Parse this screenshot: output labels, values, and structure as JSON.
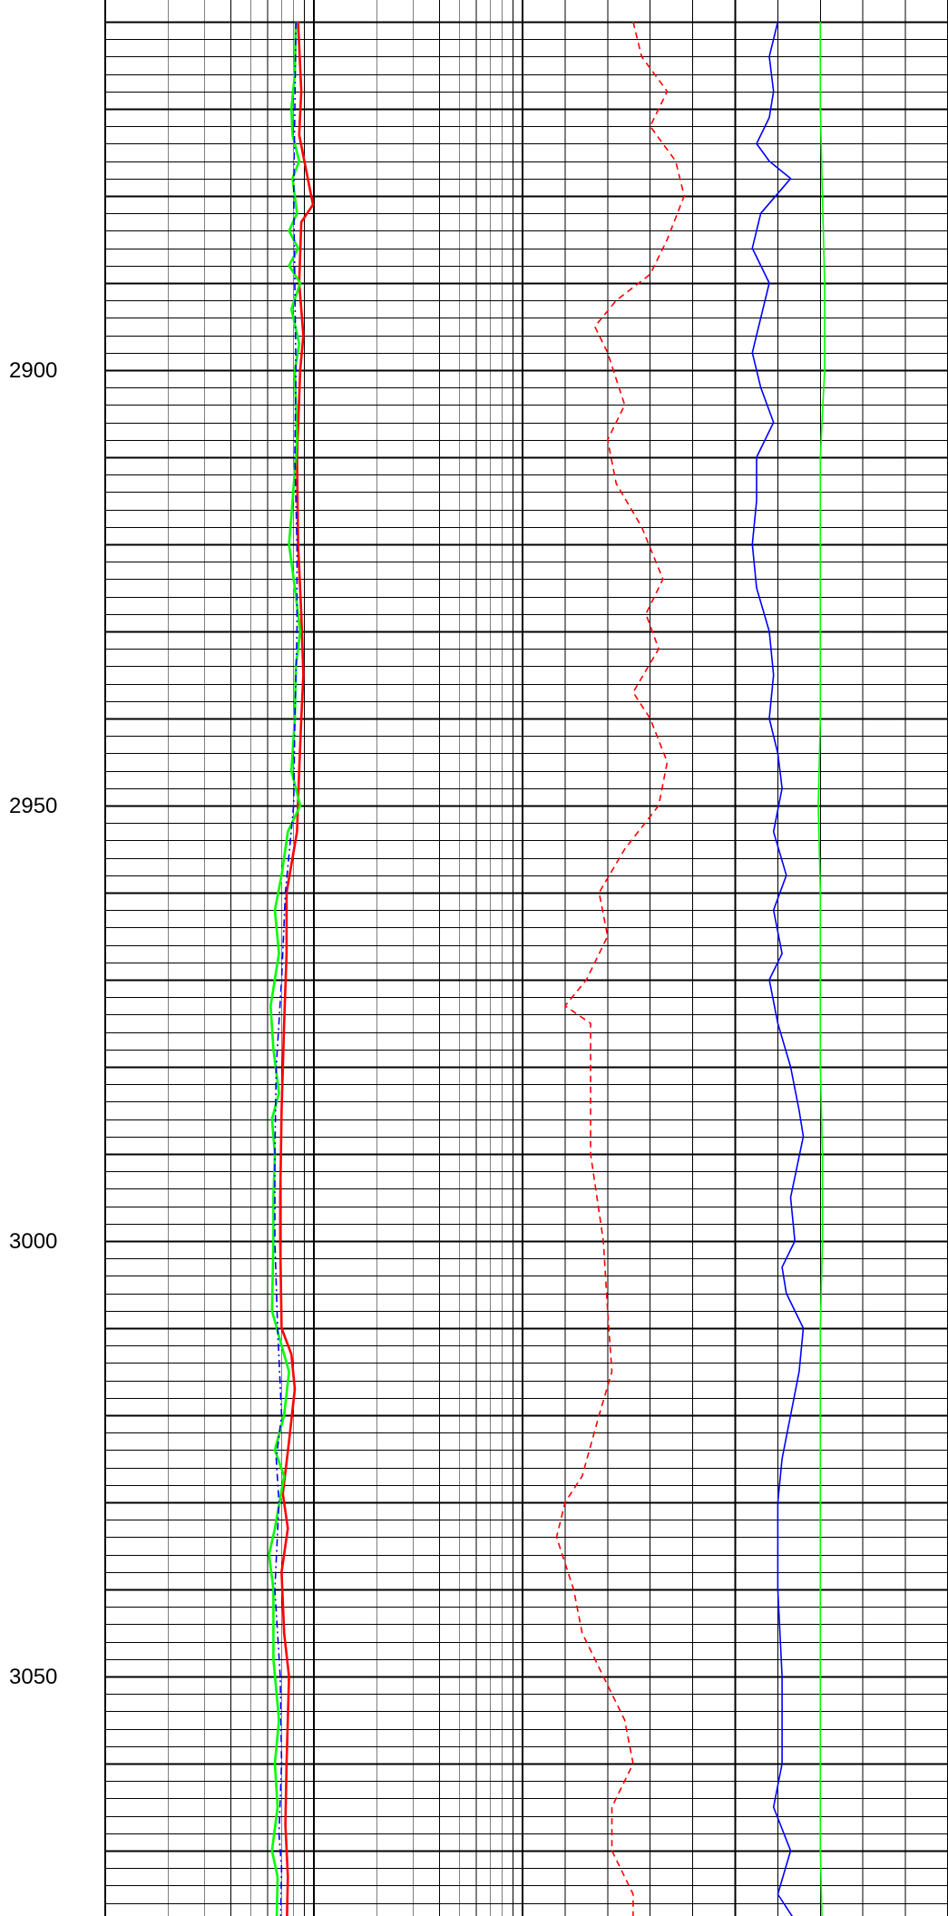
{
  "chart_data": {
    "type": "line",
    "title": "",
    "orientation": "vertical-depth",
    "depth_axis": {
      "range": [
        2860,
        3080
      ],
      "tick_labels": [
        "2900",
        "2950",
        "3000",
        "3050"
      ],
      "major_step": 10,
      "labeled_step": 50,
      "grid": true
    },
    "tracks": [
      {
        "name": "",
        "scale": "log",
        "decades": 2,
        "x_range": [
          0.2,
          20
        ],
        "grid": true,
        "series": [
          {
            "name": "",
            "color": "#ff0000",
            "style": "solid",
            "points": [
              [
                2860,
                1.68
              ],
              [
                2868,
                1.74
              ],
              [
                2873,
                1.7
              ],
              [
                2881,
                1.98
              ],
              [
                2883,
                1.74
              ],
              [
                2890,
                1.7
              ],
              [
                2896,
                1.78
              ],
              [
                2900,
                1.72
              ],
              [
                2910,
                1.66
              ],
              [
                2920,
                1.68
              ],
              [
                2928,
                1.74
              ],
              [
                2935,
                1.78
              ],
              [
                2940,
                1.74
              ],
              [
                2946,
                1.7
              ],
              [
                2953,
                1.66
              ],
              [
                2960,
                1.48
              ],
              [
                2967,
                1.48
              ],
              [
                2975,
                1.44
              ],
              [
                2985,
                1.4
              ],
              [
                2995,
                1.38
              ],
              [
                3000,
                1.38
              ],
              [
                3010,
                1.4
              ],
              [
                3013,
                1.56
              ],
              [
                3017,
                1.62
              ],
              [
                3023,
                1.52
              ],
              [
                3029,
                1.42
              ],
              [
                3033,
                1.5
              ],
              [
                3038,
                1.4
              ],
              [
                3045,
                1.44
              ],
              [
                3050,
                1.52
              ],
              [
                3060,
                1.48
              ],
              [
                3067,
                1.46
              ],
              [
                3073,
                1.5
              ],
              [
                3080,
                1.48
              ]
            ]
          },
          {
            "name": "",
            "color": "#00ff00",
            "style": "solid",
            "points": [
              [
                2860,
                1.64
              ],
              [
                2866,
                1.62
              ],
              [
                2870,
                1.56
              ],
              [
                2873,
                1.58
              ],
              [
                2876,
                1.7
              ],
              [
                2878,
                1.58
              ],
              [
                2882,
                1.66
              ],
              [
                2884,
                1.52
              ],
              [
                2886,
                1.68
              ],
              [
                2888,
                1.52
              ],
              [
                2890,
                1.72
              ],
              [
                2893,
                1.56
              ],
              [
                2897,
                1.7
              ],
              [
                2900,
                1.62
              ],
              [
                2908,
                1.66
              ],
              [
                2915,
                1.58
              ],
              [
                2920,
                1.52
              ],
              [
                2925,
                1.62
              ],
              [
                2930,
                1.72
              ],
              [
                2934,
                1.64
              ],
              [
                2940,
                1.62
              ],
              [
                2946,
                1.56
              ],
              [
                2950,
                1.72
              ],
              [
                2953,
                1.5
              ],
              [
                2958,
                1.4
              ],
              [
                2962,
                1.3
              ],
              [
                2967,
                1.36
              ],
              [
                2973,
                1.24
              ],
              [
                2978,
                1.28
              ],
              [
                2983,
                1.36
              ],
              [
                2986,
                1.26
              ],
              [
                2990,
                1.3
              ],
              [
                2995,
                1.28
              ],
              [
                3000,
                1.28
              ],
              [
                3008,
                1.26
              ],
              [
                3012,
                1.4
              ],
              [
                3015,
                1.52
              ],
              [
                3020,
                1.44
              ],
              [
                3024,
                1.3
              ],
              [
                3027,
                1.44
              ],
              [
                3033,
                1.3
              ],
              [
                3036,
                1.22
              ],
              [
                3040,
                1.28
              ],
              [
                3048,
                1.28
              ],
              [
                3055,
                1.36
              ],
              [
                3060,
                1.3
              ],
              [
                3065,
                1.34
              ],
              [
                3070,
                1.26
              ],
              [
                3073,
                1.34
              ],
              [
                3080,
                1.32
              ]
            ]
          },
          {
            "name": "",
            "color": "#0000ff",
            "style": "dash-dot",
            "points": [
              [
                2860,
                1.64
              ],
              [
                2870,
                1.62
              ],
              [
                2880,
                1.6
              ],
              [
                2890,
                1.62
              ],
              [
                2900,
                1.64
              ],
              [
                2910,
                1.62
              ],
              [
                2920,
                1.66
              ],
              [
                2930,
                1.66
              ],
              [
                2940,
                1.62
              ],
              [
                2950,
                1.6
              ],
              [
                2960,
                1.46
              ],
              [
                2970,
                1.4
              ],
              [
                2980,
                1.32
              ],
              [
                2990,
                1.3
              ],
              [
                3000,
                1.3
              ],
              [
                3010,
                1.34
              ],
              [
                3020,
                1.4
              ],
              [
                3025,
                1.32
              ],
              [
                3030,
                1.36
              ],
              [
                3040,
                1.3
              ],
              [
                3050,
                1.38
              ],
              [
                3060,
                1.4
              ],
              [
                3068,
                1.36
              ],
              [
                3072,
                1.4
              ],
              [
                3080,
                1.38
              ]
            ]
          }
        ]
      },
      {
        "name": "",
        "scale": "linear",
        "x_range": [
          0,
          10
        ],
        "grid": true,
        "series": [
          {
            "name": "",
            "color": "#ff0000",
            "style": "dashed",
            "points": [
              [
                2860,
                2.6
              ],
              [
                2864,
                2.8
              ],
              [
                2868,
                3.4
              ],
              [
                2872,
                3.0
              ],
              [
                2876,
                3.6
              ],
              [
                2880,
                3.8
              ],
              [
                2885,
                3.4
              ],
              [
                2889,
                3.0
              ],
              [
                2892,
                2.2
              ],
              [
                2895,
                1.7
              ],
              [
                2898,
                2.0
              ],
              [
                2904,
                2.4
              ],
              [
                2908,
                2.0
              ],
              [
                2913,
                2.2
              ],
              [
                2918,
                2.8
              ],
              [
                2924,
                3.3
              ],
              [
                2928,
                2.9
              ],
              [
                2932,
                3.2
              ],
              [
                2937,
                2.6
              ],
              [
                2940,
                3.0
              ],
              [
                2945,
                3.4
              ],
              [
                2950,
                3.2
              ],
              [
                2955,
                2.4
              ],
              [
                2960,
                1.8
              ],
              [
                2965,
                2.0
              ],
              [
                2970,
                1.5
              ],
              [
                2973,
                1.0
              ],
              [
                2975,
                1.6
              ],
              [
                2983,
                1.6
              ],
              [
                2990,
                1.6
              ],
              [
                3000,
                1.9
              ],
              [
                3008,
                2.0
              ],
              [
                3015,
                2.1
              ],
              [
                3020,
                1.8
              ],
              [
                3027,
                1.4
              ],
              [
                3030,
                1.0
              ],
              [
                3034,
                0.8
              ],
              [
                3040,
                1.2
              ],
              [
                3045,
                1.4
              ],
              [
                3050,
                1.9
              ],
              [
                3055,
                2.4
              ],
              [
                3060,
                2.6
              ],
              [
                3065,
                2.1
              ],
              [
                3070,
                2.1
              ],
              [
                3075,
                2.6
              ],
              [
                3080,
                2.6
              ]
            ]
          },
          {
            "name": "",
            "color": "#0000ff",
            "style": "solid",
            "points": [
              [
                2860,
                6.0
              ],
              [
                2864,
                5.8
              ],
              [
                2868,
                5.9
              ],
              [
                2871,
                5.8
              ],
              [
                2874,
                5.5
              ],
              [
                2876,
                5.8
              ],
              [
                2878,
                6.3
              ],
              [
                2882,
                5.6
              ],
              [
                2886,
                5.4
              ],
              [
                2890,
                5.8
              ],
              [
                2894,
                5.6
              ],
              [
                2898,
                5.4
              ],
              [
                2902,
                5.6
              ],
              [
                2906,
                5.9
              ],
              [
                2910,
                5.5
              ],
              [
                2915,
                5.5
              ],
              [
                2920,
                5.4
              ],
              [
                2925,
                5.5
              ],
              [
                2930,
                5.8
              ],
              [
                2935,
                5.9
              ],
              [
                2940,
                5.8
              ],
              [
                2944,
                6.0
              ],
              [
                2948,
                6.1
              ],
              [
                2953,
                5.9
              ],
              [
                2958,
                6.2
              ],
              [
                2962,
                5.9
              ],
              [
                2967,
                6.1
              ],
              [
                2970,
                5.8
              ],
              [
                2975,
                6.0
              ],
              [
                2980,
                6.3
              ],
              [
                2985,
                6.5
              ],
              [
                2988,
                6.6
              ],
              [
                2995,
                6.3
              ],
              [
                3000,
                6.4
              ],
              [
                3003,
                6.1
              ],
              [
                3006,
                6.2
              ],
              [
                3010,
                6.6
              ],
              [
                3015,
                6.5
              ],
              [
                3020,
                6.3
              ],
              [
                3025,
                6.1
              ],
              [
                3030,
                6.0
              ],
              [
                3040,
                6.0
              ],
              [
                3050,
                6.1
              ],
              [
                3060,
                6.1
              ],
              [
                3065,
                5.9
              ],
              [
                3070,
                6.3
              ],
              [
                3075,
                6.0
              ],
              [
                3078,
                6.4
              ],
              [
                3080,
                6.5
              ]
            ]
          },
          {
            "name": "",
            "color": "#00ff00",
            "style": "solid",
            "points": [
              [
                2860,
                7.0
              ],
              [
                2870,
                7.0
              ],
              [
                2880,
                7.05
              ],
              [
                2890,
                7.1
              ],
              [
                2900,
                7.1
              ],
              [
                2905,
                7.05
              ],
              [
                2910,
                7.0
              ],
              [
                2920,
                7.0
              ],
              [
                2930,
                7.0
              ],
              [
                2940,
                7.0
              ],
              [
                2950,
                6.95
              ],
              [
                2960,
                7.0
              ],
              [
                2970,
                7.0
              ],
              [
                2980,
                7.0
              ],
              [
                2990,
                7.05
              ],
              [
                3000,
                7.05
              ],
              [
                3010,
                7.0
              ],
              [
                3020,
                7.0
              ],
              [
                3030,
                7.0
              ],
              [
                3040,
                7.0
              ],
              [
                3050,
                7.0
              ],
              [
                3060,
                7.0
              ],
              [
                3070,
                7.0
              ],
              [
                3080,
                7.05
              ]
            ]
          }
        ]
      }
    ]
  }
}
